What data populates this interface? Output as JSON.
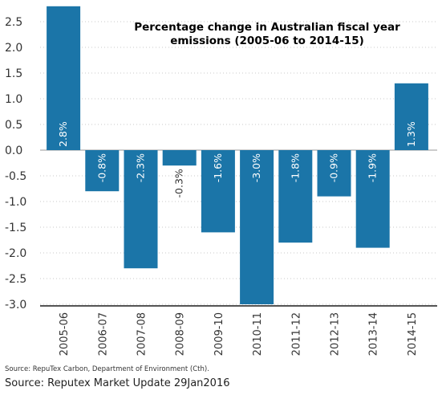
{
  "chart_data": {
    "type": "bar",
    "title": "Percentage change in Australian fiscal year emissions (2005-06 to 2014-15)",
    "title_lines": [
      "Percentage change in Australian fiscal year",
      "emissions (2005-06 to 2014-15)"
    ],
    "categories": [
      "2005-06",
      "2006-07",
      "2007-08",
      "2008-09",
      "2009-10",
      "2010-11",
      "2011-12",
      "2012-13",
      "2013-14",
      "2014-15"
    ],
    "values": [
      2.8,
      -0.8,
      -2.3,
      -0.3,
      -1.6,
      -3.0,
      -1.8,
      -0.9,
      -1.9,
      1.3
    ],
    "data_labels": [
      "2.8%",
      "-0.8%",
      "-2.3%",
      "-0.3%",
      "-1.6%",
      "-3.0%",
      "-1.8%",
      "-0.9%",
      "-1.9%",
      "1.3%"
    ],
    "yticks": [
      2.5,
      2.0,
      1.5,
      1.0,
      0.5,
      0.0,
      -0.5,
      -1.0,
      -1.5,
      -2.0,
      -2.5,
      -3.0
    ],
    "ytick_labels": [
      "2.5",
      "2.0",
      "1.5",
      "1.0",
      "0.5",
      "0.0",
      "-0.5",
      "-1.0",
      "-1.5",
      "-2.0",
      "-2.5",
      "-3.0"
    ],
    "ylim": [
      -3.0,
      2.8
    ],
    "xlabel": "",
    "ylabel": "",
    "grid": "dotted horizontal",
    "bar_color": "#1b75a8",
    "label_color_inside": "#ffffff",
    "label_color_outside": "#333333"
  },
  "source_small": "Source: RepuTex Carbon, Department of Environment (Cth).",
  "source_main": "Source: Reputex Market Update 29Jan2016"
}
